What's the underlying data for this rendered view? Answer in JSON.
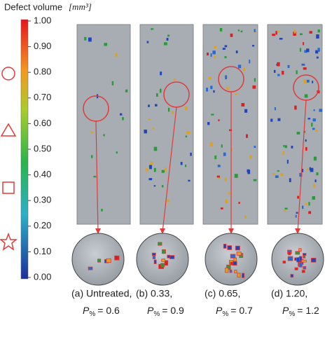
{
  "colorbar": {
    "title": "Defect volume",
    "unit": "[mm³]",
    "ticks": [
      {
        "value": 1,
        "label": "1.00"
      },
      {
        "value": 0.9,
        "label": "0.90"
      },
      {
        "value": 0.8,
        "label": "0.80"
      },
      {
        "value": 0.7,
        "label": "0.70"
      },
      {
        "value": 0.6,
        "label": "0.60"
      },
      {
        "value": 0.5,
        "label": "0.50"
      },
      {
        "value": 0.4,
        "label": "0.40"
      },
      {
        "value": 0.3,
        "label": "0.30"
      },
      {
        "value": 0.2,
        "label": "0.20"
      },
      {
        "value": 0.1,
        "label": "0.10"
      },
      {
        "value": 0,
        "label": "0.00"
      }
    ],
    "lim": [
      0,
      1
    ]
  },
  "panels": [
    {
      "caption": "(a) Untreated,",
      "p_symbol": "P",
      "p_subscript": "%",
      "p_value": "= 0.6"
    },
    {
      "caption": "(b) 0.33,",
      "p_symbol": "P",
      "p_subscript": "%",
      "p_value": "= 0.9"
    },
    {
      "caption": "(c) 0.65,",
      "p_symbol": "P",
      "p_subscript": "%",
      "p_value": "= 0.7"
    },
    {
      "caption": "(d) 1.20,",
      "p_symbol": "P",
      "p_subscript": "%",
      "p_value": "= 1.2"
    }
  ]
}
